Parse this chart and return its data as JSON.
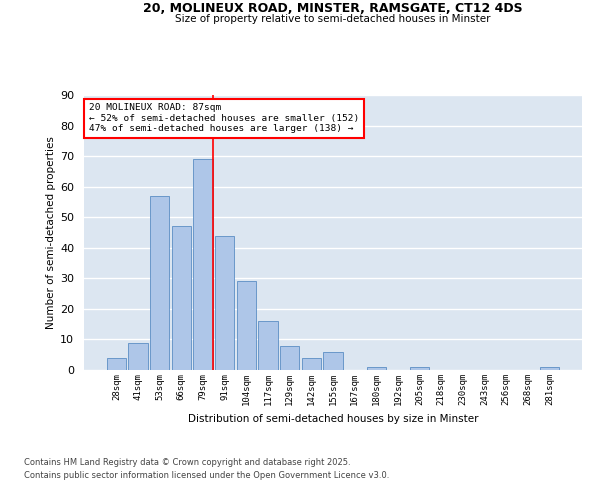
{
  "title_line1": "20, MOLINEUX ROAD, MINSTER, RAMSGATE, CT12 4DS",
  "title_line2": "Size of property relative to semi-detached houses in Minster",
  "xlabel": "Distribution of semi-detached houses by size in Minster",
  "ylabel": "Number of semi-detached properties",
  "bar_labels": [
    "28sqm",
    "41sqm",
    "53sqm",
    "66sqm",
    "79sqm",
    "91sqm",
    "104sqm",
    "117sqm",
    "129sqm",
    "142sqm",
    "155sqm",
    "167sqm",
    "180sqm",
    "192sqm",
    "205sqm",
    "218sqm",
    "230sqm",
    "243sqm",
    "256sqm",
    "268sqm",
    "281sqm"
  ],
  "bar_values": [
    4,
    9,
    57,
    47,
    69,
    44,
    29,
    16,
    8,
    4,
    6,
    0,
    1,
    0,
    1,
    0,
    0,
    0,
    0,
    0,
    1
  ],
  "bar_color": "#aec6e8",
  "bar_edge_color": "#5b8ec4",
  "background_color": "#dce6f1",
  "annotation_line1": "20 MOLINEUX ROAD: 87sqm",
  "annotation_line2": "← 52% of semi-detached houses are smaller (152)",
  "annotation_line3": "47% of semi-detached houses are larger (138) →",
  "red_line_x": 4.5,
  "ylim": [
    0,
    90
  ],
  "yticks": [
    0,
    10,
    20,
    30,
    40,
    50,
    60,
    70,
    80,
    90
  ],
  "footer_line1": "Contains HM Land Registry data © Crown copyright and database right 2025.",
  "footer_line2": "Contains public sector information licensed under the Open Government Licence v3.0."
}
